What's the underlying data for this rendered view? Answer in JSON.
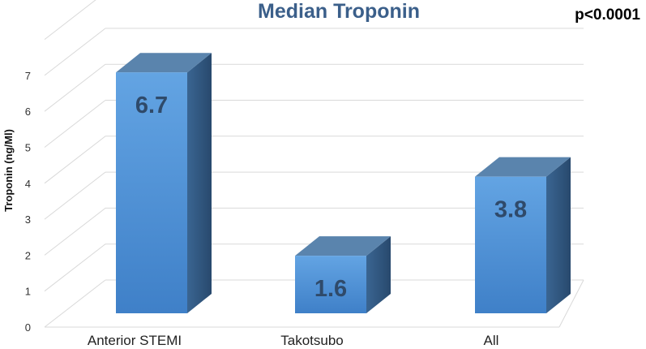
{
  "chart_data": {
    "type": "bar",
    "title": "Median Troponin",
    "annotation": "p<0.0001",
    "ylabel": "Troponin (ng/Ml)",
    "xlabel": "",
    "categories": [
      "Anterior STEMI",
      "Takotsubo",
      "All"
    ],
    "values": [
      6.7,
      1.6,
      3.8
    ],
    "data_labels": [
      "6.7",
      "1.6",
      "3.8"
    ],
    "yticks": [
      "0",
      "1",
      "2",
      "3",
      "4",
      "5",
      "6",
      "7"
    ],
    "ylim": [
      0,
      7
    ],
    "grid": true,
    "three_d": true,
    "legend": "none"
  },
  "colors": {
    "title": "#3b5f8a",
    "bar_front_top": "#63a4e3",
    "bar_front_bottom": "#3f80c8",
    "bar_top": "#5a84ad",
    "bar_side": "#2f5680",
    "data_label": "#2f4a6a",
    "gridline": "#d9d9d9",
    "text": "#000000"
  }
}
